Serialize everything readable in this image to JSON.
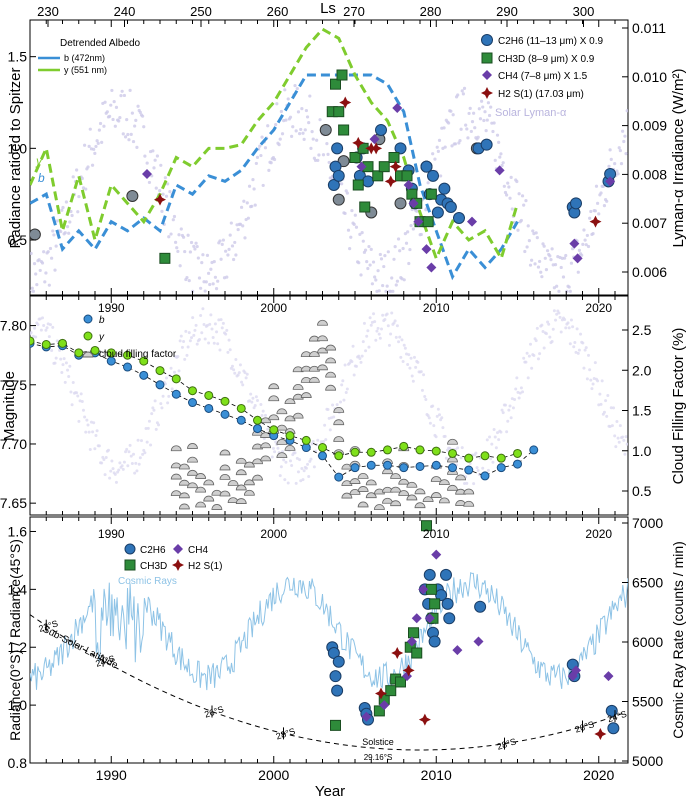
{
  "chart_data": [
    {
      "id": "top",
      "type": "scatter",
      "ylabel": "Radiance ratioed to Spitzer",
      "ylabel_right": "Lyman-α Irradiance (W/m²)",
      "xlabel_top": "Ls",
      "ylim": [
        0.2,
        1.7
      ],
      "yticks": [
        "0.5",
        "1.0",
        "1.5"
      ],
      "yticks_right": [
        "0.006",
        "0.007",
        "0.008",
        "0.009",
        "0.010",
        "0.011"
      ],
      "ls_ticks": [
        "230",
        "240",
        "250",
        "260",
        "270",
        "280",
        "290",
        "300"
      ],
      "legend_left_title": "Detrended Albedo",
      "legend_left": [
        {
          "name": "b (472nm)",
          "color": "#3a8fd6"
        },
        {
          "name": "y (551 nm)",
          "color": "#7fcc2e"
        }
      ],
      "legend_right": [
        {
          "name": "C2H6 (11–13 μm) X 0.9",
          "color": "#2f74b8"
        },
        {
          "name": "CH3D (8–9 μm) X 0.9",
          "color": "#2e8b3a"
        },
        {
          "name": "CH4 (7–8 μm) X 1.5",
          "color": "#6a3da8"
        },
        {
          "name": "H2 S(1) (17.03 μm)",
          "color": "#8b1010"
        }
      ],
      "label_solar": "Solar Lyman-α",
      "curve_letter_b": "b",
      "curve_letter_y": "y",
      "b_curve": {
        "x": [
          1985,
          1986,
          1987,
          1988,
          1989,
          1990,
          1991,
          1992,
          1993,
          1994,
          1995,
          1996,
          1997,
          1998,
          1999,
          2000,
          2001,
          2002,
          2003,
          2004,
          2005,
          2006,
          2007,
          2008,
          2009,
          2010,
          2011,
          2012,
          2013,
          2014,
          2015
        ],
        "y": [
          0.7,
          0.75,
          0.45,
          0.55,
          0.45,
          0.6,
          0.55,
          0.62,
          0.55,
          0.8,
          0.75,
          0.85,
          0.82,
          0.88,
          1.0,
          1.1,
          1.25,
          1.4,
          1.4,
          1.4,
          1.4,
          1.4,
          1.35,
          1.2,
          0.8,
          0.55,
          0.3,
          0.45,
          0.35,
          0.45,
          0.6
        ]
      },
      "y_curve": {
        "x": [
          1985,
          1986,
          1987,
          1988,
          1989,
          1990,
          1991,
          1992,
          1993,
          1994,
          1995,
          1996,
          1997,
          1998,
          1999,
          2000,
          2001,
          2002,
          2003,
          2004,
          2005,
          2006,
          2007,
          2008,
          2009,
          2010,
          2011,
          2012,
          2013,
          2014,
          2015
        ],
        "y": [
          0.8,
          1.0,
          0.55,
          0.85,
          0.5,
          0.8,
          0.7,
          0.6,
          0.75,
          0.95,
          0.9,
          1.0,
          1.0,
          1.02,
          1.15,
          1.25,
          1.4,
          1.55,
          1.65,
          1.6,
          1.4,
          1.25,
          1.15,
          0.95,
          0.65,
          0.4,
          0.6,
          0.5,
          0.55,
          0.4,
          0.7
        ]
      },
      "grey_points": {
        "x": [
          1985.3,
          1991.3,
          2003.2,
          2004.0,
          2004.3,
          2006.0,
          2006.5,
          2007.8,
          2009.4,
          2012.5
        ],
        "y": [
          0.53,
          0.74,
          1.1,
          0.72,
          0.93,
          0.65,
          1.05,
          0.7,
          0.9,
          1.0
        ]
      },
      "c2h6": {
        "x": [
          2003.7,
          2003.8,
          2003.9,
          2004.0,
          2005.1,
          2005.3,
          2005.5,
          2005.8,
          2006.6,
          2007.8,
          2008.3,
          2008.5,
          2008.7,
          2009.4,
          2009.6,
          2009.8,
          2010.1,
          2010.3,
          2010.5,
          2010.7,
          2010.9,
          2011.4,
          2012.6,
          2013.1,
          2018.4,
          2018.5,
          2018.6,
          2020.6,
          2020.7
        ],
        "y": [
          0.8,
          0.9,
          1.0,
          0.85,
          0.95,
          0.85,
          1.0,
          0.82,
          1.1,
          1.0,
          0.88,
          0.78,
          0.7,
          0.9,
          0.75,
          0.85,
          0.65,
          0.72,
          0.78,
          0.7,
          0.68,
          0.62,
          1.0,
          1.02,
          0.68,
          0.65,
          0.7,
          0.82,
          0.86
        ]
      },
      "ch3d": {
        "x": [
          2003.6,
          2003.8,
          2004.0,
          2004.2,
          2004.3,
          2005.0,
          2005.2,
          2005.5,
          2005.8,
          2006.4,
          2006.8,
          2007.4,
          2007.8,
          2008.2,
          2008.5,
          2008.8,
          2009.0,
          2009.5,
          2009.7,
          1993.3,
          2005.6
        ],
        "y": [
          1.2,
          1.35,
          1.2,
          1.4,
          1.1,
          0.95,
          0.8,
          1.0,
          0.9,
          0.85,
          0.9,
          0.95,
          0.85,
          0.85,
          0.75,
          0.7,
          0.6,
          0.6,
          0.75,
          0.4,
          0.68
        ]
      },
      "ch4": {
        "x": [
          1992.2,
          2005.4,
          2006.2,
          2007.6,
          2008.3,
          2008.6,
          2008.9,
          2009.4,
          2009.7,
          2012.2,
          2013.9,
          2018.5,
          2018.7,
          2020.7
        ],
        "y": [
          0.86,
          0.9,
          1.05,
          1.22,
          0.8,
          0.7,
          0.6,
          0.45,
          0.35,
          0.6,
          0.88,
          0.48,
          0.4,
          0.82
        ]
      },
      "h2": {
        "x": [
          1993.0,
          2004.4,
          2005.2,
          2006.0,
          2006.3,
          2007.2,
          2007.5,
          2019.8
        ],
        "y": [
          0.72,
          1.25,
          1.03,
          1.0,
          1.0,
          0.82,
          0.9,
          0.6
        ]
      }
    },
    {
      "id": "middle",
      "type": "line",
      "ylabel": "Magnitude",
      "ylabel_right": "Cloud Filling Factor (%)",
      "ylim": [
        7.64,
        7.825
      ],
      "yticks": [
        "7.65",
        "7.70",
        "7.75",
        "7.80"
      ],
      "yticks_right": [
        "0.5",
        "1.0",
        "1.5",
        "2.0",
        "2.5"
      ],
      "year_ticks": [
        "1990",
        "2000",
        "2010",
        "2020"
      ],
      "legend": [
        {
          "name": "b",
          "color": "#3a8fd6"
        },
        {
          "name": "y",
          "color": "#7fe01a"
        },
        {
          "name": "cloud filling factor",
          "color": "#bbbbbb"
        }
      ],
      "b_series": {
        "x": [
          1985,
          1986,
          1987,
          1988,
          1989,
          1990,
          1991,
          1992,
          1993,
          1994,
          1995,
          1996,
          1997,
          1998,
          1999,
          2000,
          2001,
          2002,
          2003,
          2004,
          2005,
          2006,
          2007,
          2008,
          2009,
          2010,
          2011,
          2012,
          2013,
          2014,
          2015,
          2016
        ],
        "y": [
          7.785,
          7.782,
          7.783,
          7.775,
          7.777,
          7.77,
          7.765,
          7.758,
          7.75,
          7.742,
          7.735,
          7.73,
          7.725,
          7.72,
          7.713,
          7.707,
          7.703,
          7.697,
          7.69,
          7.672,
          7.68,
          7.682,
          7.682,
          7.68,
          7.681,
          7.682,
          7.68,
          7.678,
          7.673,
          7.68,
          7.683,
          7.695
        ]
      },
      "y_series": {
        "x": [
          1985,
          1986,
          1987,
          1988,
          1989,
          1990,
          1991,
          1992,
          1993,
          1994,
          1995,
          1996,
          1997,
          1998,
          1999,
          2000,
          2001,
          2002,
          2003,
          2004,
          2005,
          2006,
          2007,
          2008,
          2009,
          2010,
          2011,
          2012,
          2013,
          2014,
          2015
        ],
        "y": [
          7.787,
          7.784,
          7.785,
          7.777,
          7.779,
          7.777,
          7.775,
          7.77,
          7.762,
          7.755,
          7.745,
          7.741,
          7.736,
          7.73,
          7.72,
          7.712,
          7.707,
          7.703,
          7.697,
          7.69,
          7.693,
          7.693,
          7.695,
          7.698,
          7.695,
          7.694,
          7.692,
          7.688,
          7.69,
          7.688,
          7.692
        ]
      },
      "cloud_factor": {
        "x": [
          1994.0,
          1994.5,
          1995.0,
          1995.5,
          1996.0,
          1996.5,
          1997.0,
          1997.5,
          1998.0,
          1998.5,
          1999.0,
          1999.5,
          2000.0,
          2000.5,
          2001.0,
          2001.5,
          2002.0,
          2002.5,
          2003.0,
          2003.5,
          2004.0,
          2004.5,
          2005.0,
          2005.5,
          2006.0,
          2006.5,
          2007.0,
          2007.5,
          2008.0,
          2008.5,
          2009.0,
          2009.5,
          2010.0,
          2010.5,
          2011.0,
          2011.5,
          2012.0
        ],
        "y": [
          1.0,
          0.8,
          1.1,
          0.7,
          0.6,
          0.5,
          1.0,
          0.6,
          0.9,
          0.8,
          1.2,
          1.4,
          1.8,
          1.5,
          1.6,
          2.0,
          2.2,
          2.4,
          2.6,
          2.3,
          1.5,
          0.8,
          1.0,
          0.7,
          0.6,
          0.5,
          0.9,
          0.7,
          1.0,
          0.6,
          0.5,
          0.4,
          0.8,
          0.6,
          1.1,
          0.7,
          0.5
        ]
      }
    },
    {
      "id": "bottom",
      "type": "scatter",
      "ylabel": "Radiance(0°S) / Radiance(45°S)",
      "ylabel_right": "Cosmic Ray Rate (counts / min)",
      "xlabel": "Year",
      "ylim": [
        0.8,
        1.65
      ],
      "yticks": [
        "0.8",
        "1.0",
        "1.2",
        "1.4",
        "1.6"
      ],
      "yticks_right": [
        "5000",
        "5500",
        "6000",
        "6500",
        "7000"
      ],
      "year_ticks": [
        "1990",
        "2000",
        "2010",
        "2020"
      ],
      "legend": [
        {
          "name": "C2H6",
          "color": "#2f74b8"
        },
        {
          "name": "CH4",
          "color": "#6a3da8"
        },
        {
          "name": "CH3D",
          "color": "#2e8b3a"
        },
        {
          "name": "H2 S(1)",
          "color": "#8b1010"
        }
      ],
      "label_cosmic": "Cosmic Rays",
      "label_subsolar": "Sub-Solar Latitude",
      "label_solstice": "Solstice",
      "label_solstice_lat": "29.16°S",
      "lat_labels": [
        "22°S",
        "24°S",
        "26°S",
        "28°S",
        "28°S",
        "26°S",
        "24°S"
      ],
      "c2h6": {
        "x": [
          2003.6,
          2003.7,
          2003.8,
          2003.9,
          2004.0,
          2005.6,
          2005.7,
          2005.8,
          2009.3,
          2009.5,
          2009.6,
          2009.7,
          2009.8,
          2009.9,
          2010.1,
          2010.3,
          2010.6,
          2010.7,
          2010.8,
          2012.7,
          2018.4,
          2018.5,
          2020.8,
          2020.9
        ],
        "y": [
          1.2,
          1.18,
          1.1,
          1.05,
          1.15,
          0.99,
          0.97,
          0.95,
          1.4,
          1.35,
          1.45,
          1.3,
          1.25,
          1.22,
          1.4,
          1.38,
          1.45,
          1.35,
          1.3,
          1.34,
          1.14,
          1.1,
          0.98,
          0.92
        ]
      },
      "ch3d": {
        "x": [
          2003.8,
          2006.5,
          2006.8,
          2007.2,
          2007.5,
          2007.8,
          2008.4,
          2008.6,
          2008.8,
          2009.4,
          2009.7,
          2009.8,
          2009.9
        ],
        "y": [
          0.93,
          0.98,
          1.02,
          1.05,
          1.09,
          1.08,
          1.2,
          1.25,
          1.18,
          1.62,
          1.4,
          1.3,
          1.35
        ]
      },
      "ch4": {
        "x": [
          2005.7,
          2006.8,
          2008.2,
          2008.5,
          2008.8,
          2009.2,
          2009.6,
          2010.0,
          2011.3,
          2012.6,
          2018.4,
          2018.6,
          2020.6
        ],
        "y": [
          0.96,
          1.0,
          1.1,
          1.22,
          1.3,
          1.4,
          1.3,
          1.52,
          1.19,
          1.22,
          1.1,
          1.12,
          1.1
        ]
      },
      "h2": {
        "x": [
          2007.6,
          2008.3,
          2006.6,
          2009.3,
          2020.1
        ],
        "y": [
          1.18,
          1.12,
          1.04,
          0.95,
          0.9
        ]
      }
    }
  ]
}
